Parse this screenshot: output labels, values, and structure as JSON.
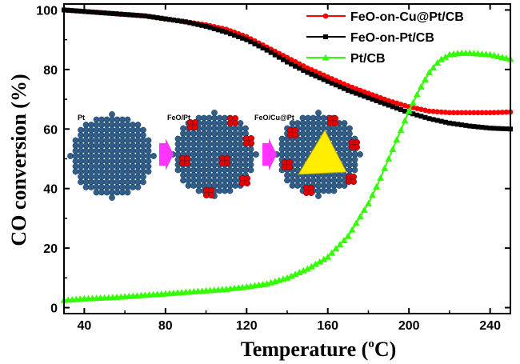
{
  "chart_data": {
    "type": "line",
    "xlabel": "Temperature (°C)",
    "xlabel_parts": {
      "main": "Temperature (",
      "sup": "o",
      "unit": "C)"
    },
    "ylabel": "CO conversion (%)",
    "xlim": [
      30,
      250
    ],
    "ylim": [
      -2,
      102
    ],
    "x_ticks": [
      40,
      80,
      120,
      160,
      200,
      240
    ],
    "y_ticks": [
      0,
      20,
      40,
      60,
      80,
      100
    ],
    "grid": false,
    "legend_position": "top-right",
    "series": [
      {
        "name": "FeO-on-Cu@Pt/CB",
        "color": "#ff0000",
        "marker": "circle",
        "x": [
          30,
          40,
          50,
          60,
          70,
          80,
          90,
          100,
          110,
          120,
          130,
          140,
          150,
          160,
          170,
          180,
          190,
          200,
          210,
          220,
          230,
          240,
          250
        ],
        "y": [
          100,
          99.5,
          99,
          98.5,
          98,
          97,
          96,
          95,
          93.5,
          91,
          87.5,
          84,
          80.5,
          77.5,
          74.5,
          72,
          69.5,
          67.5,
          66,
          65.5,
          65.5,
          65.5,
          65.7
        ]
      },
      {
        "name": "FeO-on-Pt/CB",
        "color": "#000000",
        "marker": "square",
        "x": [
          30,
          40,
          50,
          60,
          70,
          80,
          90,
          100,
          110,
          120,
          130,
          140,
          150,
          160,
          170,
          180,
          190,
          200,
          210,
          220,
          230,
          240,
          250
        ],
        "y": [
          100,
          99.5,
          99,
          98.5,
          98,
          97,
          96,
          94.5,
          92.5,
          90,
          86.5,
          82.5,
          79,
          76,
          73,
          70.5,
          68,
          65.5,
          63.5,
          62,
          61,
          60.3,
          60
        ]
      },
      {
        "name": "Pt/CB",
        "color": "#33ff00",
        "marker": "triangle",
        "x": [
          30,
          40,
          50,
          60,
          70,
          80,
          90,
          100,
          110,
          120,
          130,
          140,
          150,
          160,
          170,
          180,
          185,
          190,
          195,
          200,
          205,
          210,
          215,
          220,
          225,
          230,
          240,
          250
        ],
        "y": [
          2.5,
          3,
          3.3,
          3.7,
          4.2,
          4.7,
          5.2,
          5.7,
          6.2,
          7,
          8,
          10,
          13,
          17,
          24,
          35,
          42,
          50,
          58,
          66,
          73,
          79,
          83,
          85,
          85.5,
          85.5,
          85,
          83.5
        ]
      }
    ],
    "inset": {
      "labels": [
        "Pt",
        "FeO/Pt",
        "FeO/Cu@Pt"
      ]
    }
  },
  "colors": {
    "particle_blue": "#2f5f8a",
    "particle_red": "#e00000",
    "particle_yellow": "#ffee00",
    "arrow_magenta": "#ff33ff"
  }
}
